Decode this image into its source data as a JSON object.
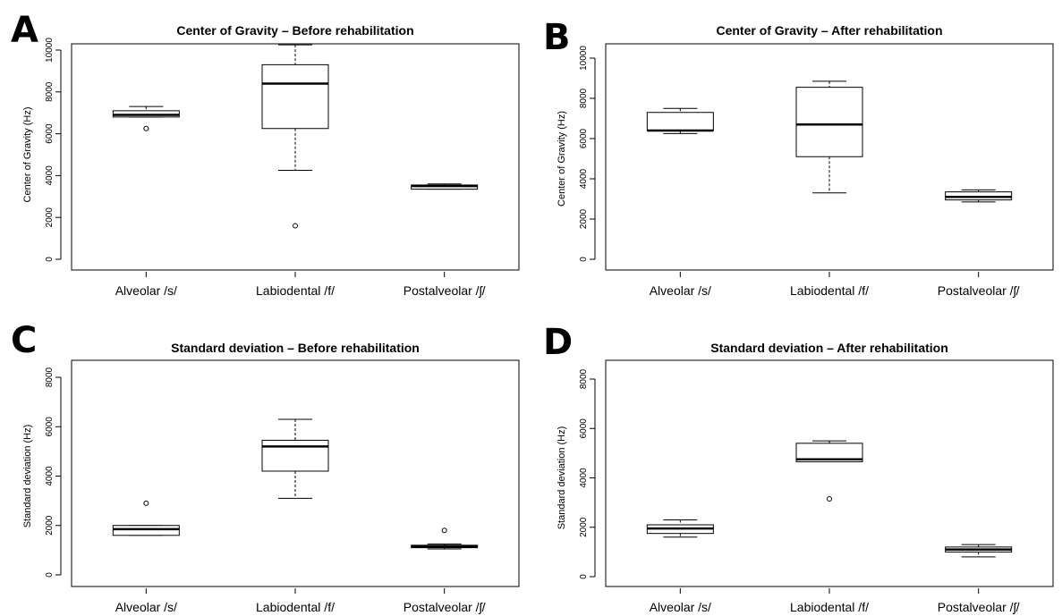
{
  "chart_data": [
    {
      "type": "box",
      "panel": "A",
      "title": "Center of Gravity – Before rehabilitation",
      "ylabel": "Center of Gravity (Hz)",
      "xlabel": "",
      "categories": [
        "Alveolar /s/",
        "Labiodental /f/",
        "Postalveolar /ʃ/"
      ],
      "ylim": [
        0,
        10000
      ],
      "yticks": [
        0,
        2000,
        4000,
        6000,
        8000,
        10000
      ],
      "boxes": [
        {
          "whisker_low": 6800,
          "q1": 6800,
          "median": 6900,
          "q3": 7100,
          "whisker_high": 7300,
          "outliers": [
            6250
          ]
        },
        {
          "whisker_low": 4250,
          "q1": 6250,
          "median": 8400,
          "q3": 9300,
          "whisker_high": 10250,
          "outliers": [
            1600
          ]
        },
        {
          "whisker_low": 3350,
          "q1": 3350,
          "median": 3500,
          "q3": 3550,
          "whisker_high": 3600,
          "outliers": []
        }
      ]
    },
    {
      "type": "box",
      "panel": "B",
      "title": "Center of Gravity – After rehabilitation",
      "ylabel": "Center of Gravity (Hz)",
      "xlabel": "",
      "categories": [
        "Alveolar /s/",
        "Labiodental /f/",
        "Postalveolar /ʃ/"
      ],
      "ylim": [
        0,
        10000
      ],
      "yticks": [
        0,
        2000,
        4000,
        6000,
        8000,
        10000
      ],
      "boxes": [
        {
          "whisker_low": 6250,
          "q1": 6400,
          "median": 6400,
          "q3": 7300,
          "whisker_high": 7500,
          "outliers": []
        },
        {
          "whisker_low": 3300,
          "q1": 5100,
          "median": 6700,
          "q3": 8550,
          "whisker_high": 8850,
          "outliers": []
        },
        {
          "whisker_low": 2850,
          "q1": 2950,
          "median": 3100,
          "q3": 3350,
          "whisker_high": 3450,
          "outliers": []
        }
      ]
    },
    {
      "type": "box",
      "panel": "C",
      "title": "Standard deviation – Before rehabilitation",
      "ylabel": "Standard deviation (Hz)",
      "xlabel": "",
      "categories": [
        "Alveolar /s/",
        "Labiodental /f/",
        "Postalveolar /ʃ/"
      ],
      "ylim": [
        0,
        8000
      ],
      "yticks": [
        0,
        2000,
        4000,
        6000,
        8000
      ],
      "boxes": [
        {
          "whisker_low": 1600,
          "q1": 1600,
          "median": 1850,
          "q3": 2000,
          "whisker_high": 2000,
          "outliers": [
            2900
          ]
        },
        {
          "whisker_low": 3100,
          "q1": 4200,
          "median": 5200,
          "q3": 5450,
          "whisker_high": 6300,
          "outliers": []
        },
        {
          "whisker_low": 1050,
          "q1": 1100,
          "median": 1150,
          "q3": 1200,
          "whisker_high": 1250,
          "outliers": [
            1800
          ]
        }
      ]
    },
    {
      "type": "box",
      "panel": "D",
      "title": "Standard deviation – After rehabilitation",
      "ylabel": "Standard deviation (Hz)",
      "xlabel": "",
      "categories": [
        "Alveolar /s/",
        "Labiodental /f/",
        "Postalveolar /ʃ/"
      ],
      "ylim": [
        0,
        8000
      ],
      "yticks": [
        0,
        2000,
        4000,
        6000,
        8000
      ],
      "boxes": [
        {
          "whisker_low": 1600,
          "q1": 1750,
          "median": 1950,
          "q3": 2100,
          "whisker_high": 2300,
          "outliers": []
        },
        {
          "whisker_low": 4650,
          "q1": 4650,
          "median": 4750,
          "q3": 5400,
          "whisker_high": 5500,
          "outliers": [
            3150
          ]
        },
        {
          "whisker_low": 800,
          "q1": 1000,
          "median": 1100,
          "q3": 1200,
          "whisker_high": 1300,
          "outliers": []
        }
      ]
    }
  ]
}
